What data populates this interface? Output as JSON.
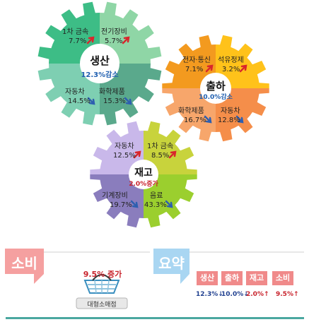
{
  "gears": {
    "production": {
      "title": "생산",
      "summary": "12.3%감소",
      "items": [
        {
          "label": "1차 금속",
          "value": "7.7%",
          "trend": "up"
        },
        {
          "label": "전기장비",
          "value": "5.7%",
          "trend": "up"
        },
        {
          "label": "자동차",
          "value": "14.5%",
          "trend": "down"
        },
        {
          "label": "화학제품",
          "value": "15.3%",
          "trend": "down"
        }
      ]
    },
    "shipment": {
      "title": "출하",
      "summary": "10.0%감소",
      "items": [
        {
          "label": "전자·통신",
          "value": "7.1%",
          "trend": "up"
        },
        {
          "label": "석유정제",
          "value": "3.2%",
          "trend": "up"
        },
        {
          "label": "화학제품",
          "value": "16.7%",
          "trend": "down"
        },
        {
          "label": "자동차",
          "value": "12.8%",
          "trend": "down"
        }
      ]
    },
    "inventory": {
      "title": "재고",
      "summary": "2.0%증가",
      "items": [
        {
          "label": "자동차",
          "value": "12.5%",
          "trend": "up"
        },
        {
          "label": "1차 금속",
          "value": "8.5%",
          "trend": "up"
        },
        {
          "label": "기계장비",
          "value": "19.7%",
          "trend": "down"
        },
        {
          "label": "음료",
          "value": "43.3%",
          "trend": "down"
        }
      ]
    }
  },
  "consumption": {
    "tag": "소비",
    "headline": "9.5% 증가",
    "store": "대형소매점"
  },
  "summary": {
    "tag": "요약",
    "tabs": [
      "생산",
      "출하",
      "재고",
      "소비"
    ],
    "values": [
      {
        "value": "12.3%",
        "arrow": "↓"
      },
      {
        "value": "10.0%",
        "arrow": "↓"
      },
      {
        "value": "2.0%",
        "arrow": "↑"
      },
      {
        "value": "9.5%",
        "arrow": "↑"
      }
    ]
  },
  "colors": {
    "up_arrow": "#d9262c",
    "down_arrow": "#2e5fb0",
    "summary_blue": "#1f5fb0",
    "summary_red": "#c8232c"
  }
}
